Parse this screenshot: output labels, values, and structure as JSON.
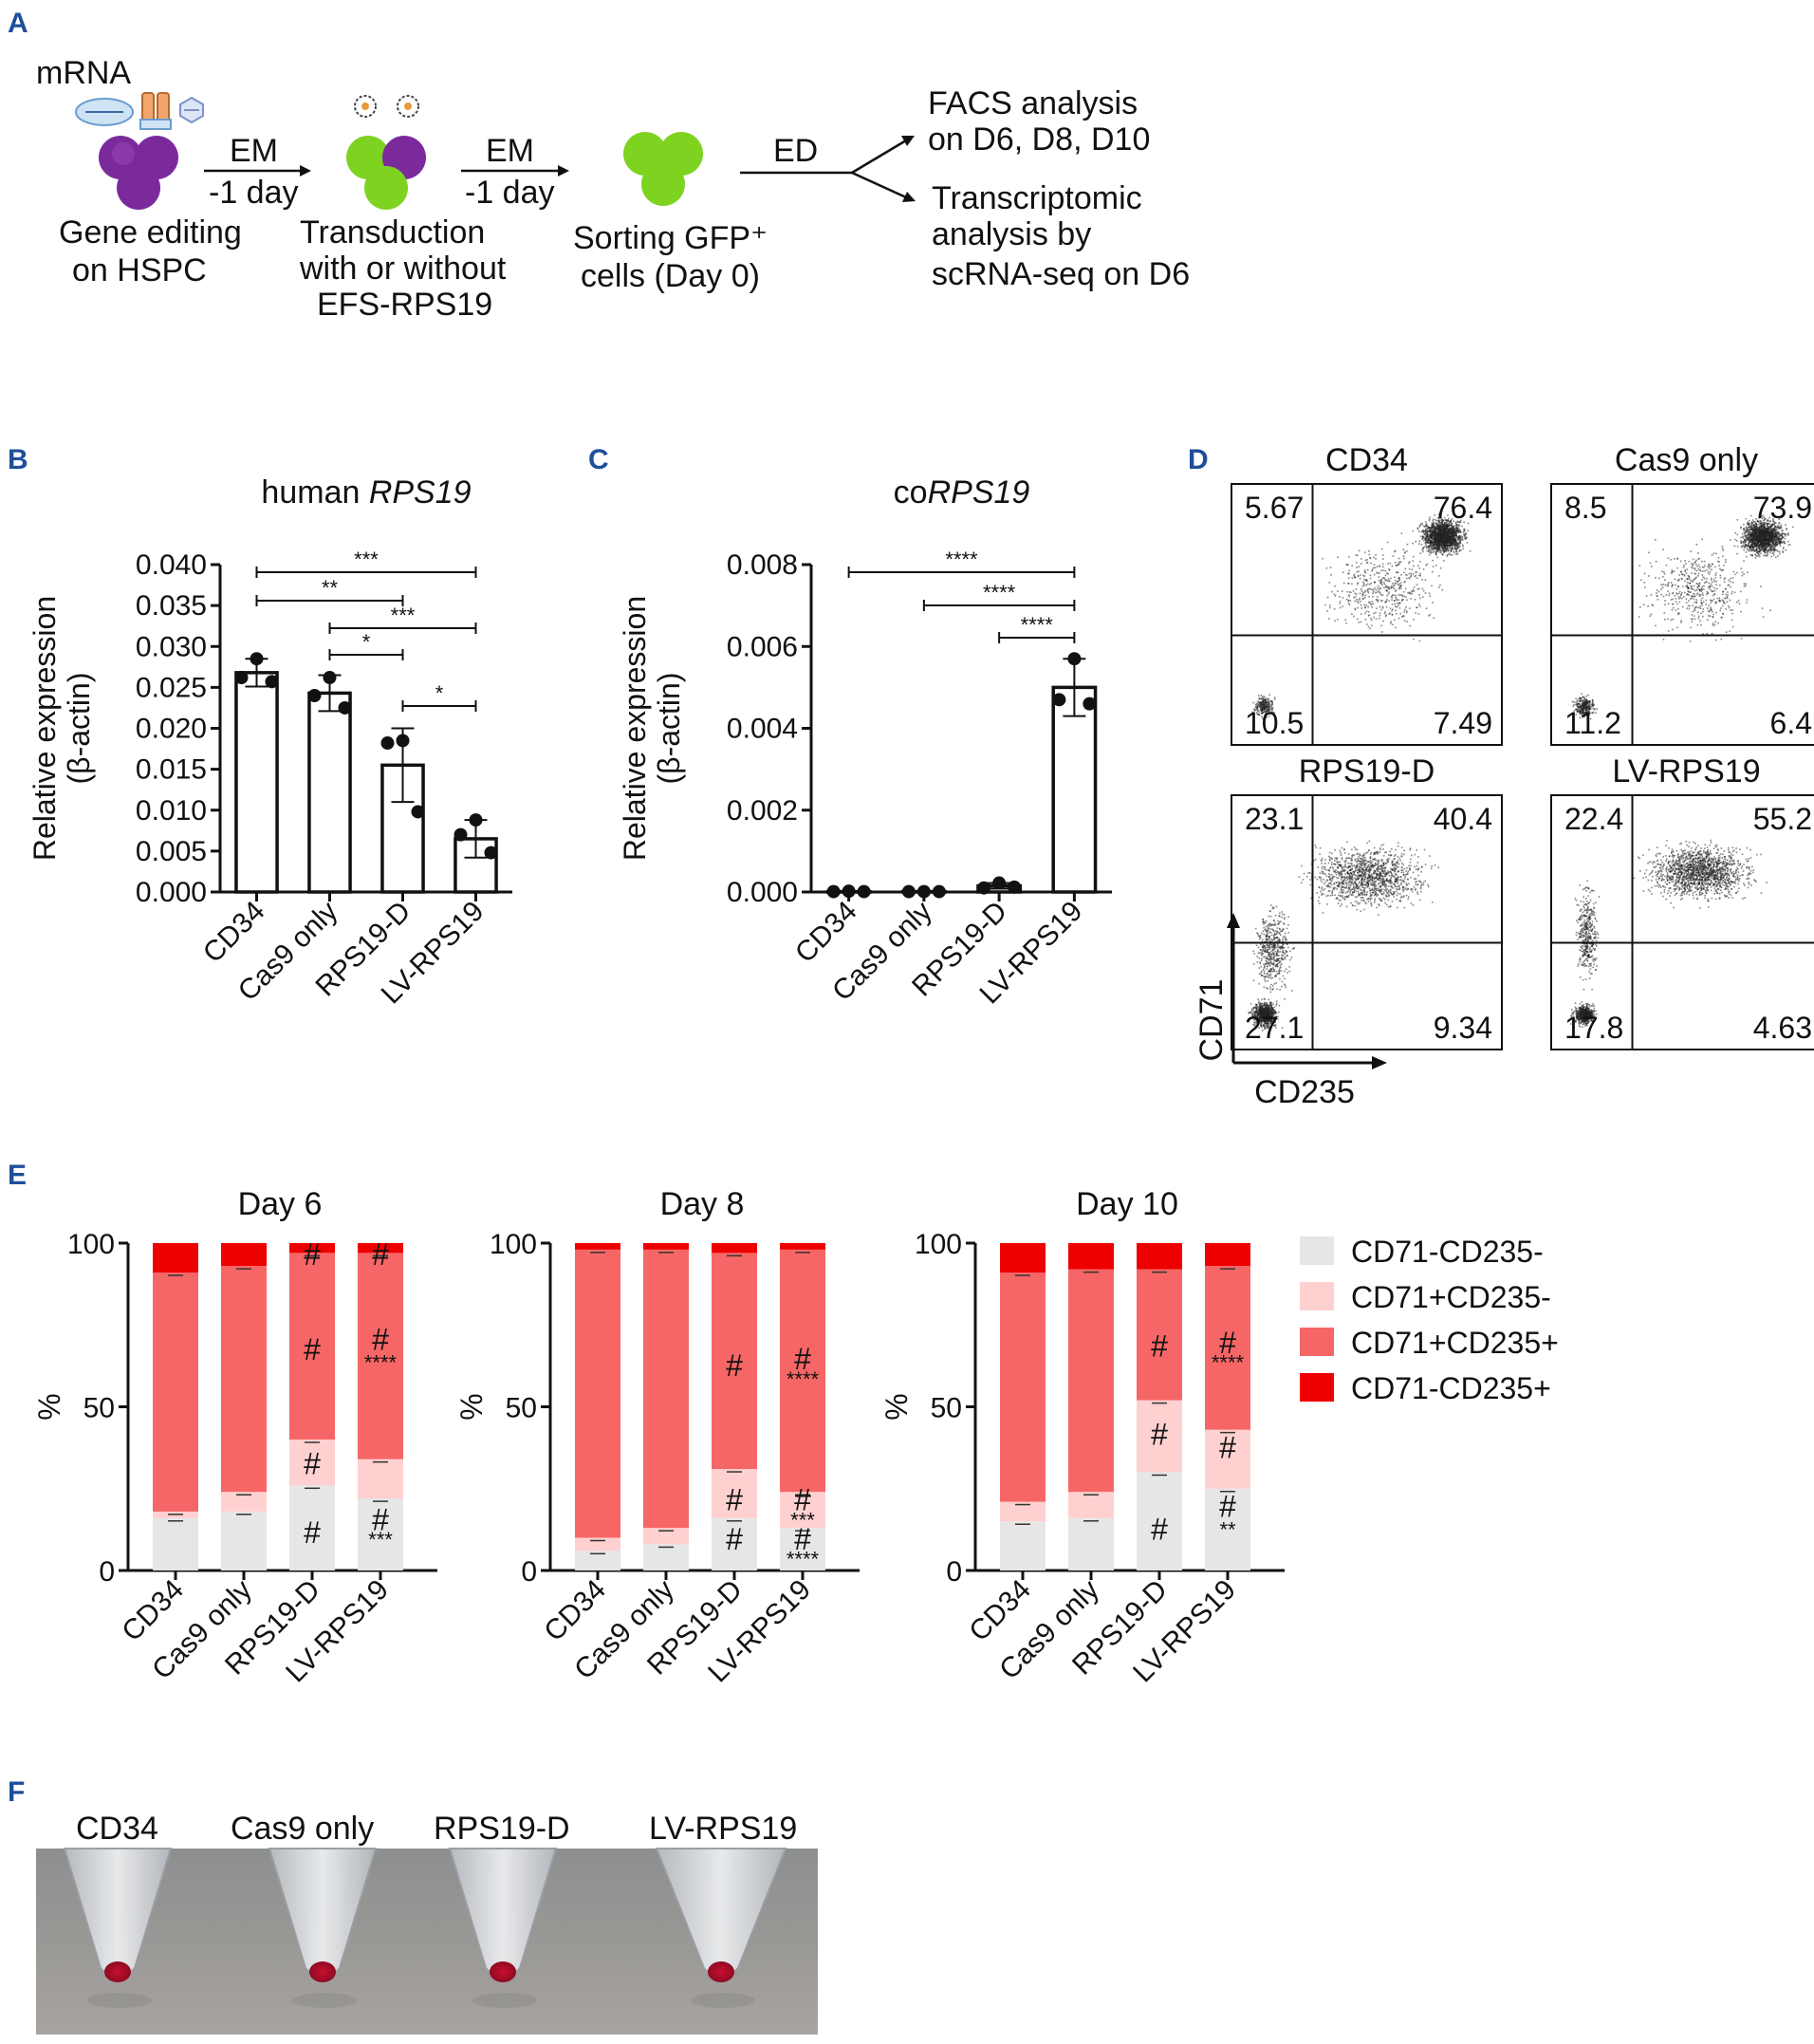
{
  "panels": {
    "A": "A",
    "B": "B",
    "C": "C",
    "D": "D",
    "E": "E",
    "F": "F"
  },
  "workflow": {
    "mrna": "mRNA",
    "em1": "EM",
    "day1": "-1 day",
    "em2": "EM",
    "day2": "-1 day",
    "ed": "ED",
    "step1": [
      "Gene editing",
      "on HSPC"
    ],
    "step2": [
      "Transduction",
      "with or without",
      "EFS-RPS19"
    ],
    "step3": [
      "Sorting GFP⁺",
      "cells (Day 0)"
    ],
    "out1": [
      "FACS analysis",
      "on D6, D8, D10"
    ],
    "out2": [
      "Transcriptomic",
      "analysis  by",
      "scRNA-seq on D6"
    ]
  },
  "colors": {
    "purple": "#7b2a9c",
    "green": "#7ed321",
    "cd71neg_cd235neg": "#e6e6e6",
    "cd71pos_cd235neg": "#ffd0d0",
    "cd71pos_cd235pos": "#f76666",
    "cd71neg_cd235pos": "#ee0000",
    "panel_letter": "#1f4e9a"
  },
  "chart_data": [
    {
      "id": "B",
      "type": "bar",
      "title_prefix": "human ",
      "title_italic": "RPS19",
      "ylabel_line1": "Relative expression",
      "ylabel_line2": "(β-actin)",
      "categories": [
        "CD34",
        "Cas9 only",
        "RPS19-D",
        "LV-RPS19"
      ],
      "values": [
        0.0268,
        0.0243,
        0.0155,
        0.0065
      ],
      "errors": [
        0.0017,
        0.0022,
        0.0045,
        0.0023
      ],
      "points": [
        [
          0.0285,
          0.0262,
          0.0257
        ],
        [
          0.0262,
          0.024,
          0.0225
        ],
        [
          0.0185,
          0.0182,
          0.0098
        ],
        [
          0.0088,
          0.007,
          0.0048
        ]
      ],
      "ylim": [
        0,
        0.04
      ],
      "yticks": [
        "0.000",
        "0.005",
        "0.010",
        "0.015",
        "0.020",
        "0.025",
        "0.030",
        "0.035",
        "0.040"
      ],
      "comparisons": [
        {
          "from": 0,
          "to": 3,
          "label": "***"
        },
        {
          "from": 0,
          "to": 2,
          "label": "**"
        },
        {
          "from": 1,
          "to": 3,
          "label": "***"
        },
        {
          "from": 1,
          "to": 2,
          "label": "*"
        },
        {
          "from": 2,
          "to": 3,
          "label": "*"
        }
      ]
    },
    {
      "id": "C",
      "type": "bar",
      "title_prefix": "co",
      "title_italic": "RPS19",
      "ylabel_line1": "Relative expression",
      "ylabel_line2": "(β-actin)",
      "categories": [
        "CD34",
        "Cas9 only",
        "RPS19-D",
        "LV-RPS19"
      ],
      "values": [
        1e-05,
        1e-05,
        0.00015,
        0.005
      ],
      "errors": [
        1e-05,
        1e-05,
        7e-05,
        0.0007
      ],
      "points": [
        [
          2e-05,
          1e-05,
          1e-05
        ],
        [
          1e-05,
          1e-05,
          1e-05
        ],
        [
          0.00022,
          0.0001,
          0.00012
        ],
        [
          0.0057,
          0.0047,
          0.0046
        ]
      ],
      "ylim": [
        0,
        0.008
      ],
      "yticks": [
        "0.000",
        "0.002",
        "0.004",
        "0.006",
        "0.008"
      ],
      "comparisons": [
        {
          "from": 0,
          "to": 3,
          "label": "****"
        },
        {
          "from": 1,
          "to": 3,
          "label": "****"
        },
        {
          "from": 2,
          "to": 3,
          "label": "****"
        }
      ]
    },
    {
      "id": "D",
      "type": "scatter",
      "xlabel": "CD235",
      "ylabel": "CD71",
      "plots": [
        {
          "title": "CD34",
          "quadrants": {
            "ul": "5.67",
            "ur": "76.4",
            "ll": "10.5",
            "lr": "7.49"
          }
        },
        {
          "title": "Cas9 only",
          "quadrants": {
            "ul": "8.5",
            "ur": "73.9",
            "ll": "11.2",
            "lr": "6.4"
          }
        },
        {
          "title": "RPS19-D",
          "quadrants": {
            "ul": "23.1",
            "ur": "40.4",
            "ll": "27.1",
            "lr": "9.34"
          }
        },
        {
          "title": "LV-RPS19",
          "quadrants": {
            "ul": "22.4",
            "ur": "55.2",
            "ll": "17.8",
            "lr": "4.63"
          }
        }
      ]
    },
    {
      "id": "E",
      "type": "bar",
      "stacked": true,
      "ylabel": "%",
      "yticks": [
        "0",
        "50",
        "100"
      ],
      "ylim": [
        0,
        100
      ],
      "categories": [
        "CD34",
        "Cas9 only",
        "RPS19-D",
        "LV-RPS19"
      ],
      "legend": [
        "CD71-CD235-",
        "CD71+CD235-",
        "CD71+CD235+",
        "CD71-CD235+"
      ],
      "charts": [
        {
          "title": "Day 6",
          "series": [
            {
              "name": "CD71-CD235-",
              "values": [
                16,
                18,
                26,
                22
              ]
            },
            {
              "name": "CD71+CD235-",
              "values": [
                2,
                6,
                14,
                12
              ]
            },
            {
              "name": "CD71+CD235+",
              "values": [
                73,
                69,
                57,
                63
              ]
            },
            {
              "name": "CD71-CD235+",
              "values": [
                9,
                7,
                3,
                3
              ]
            }
          ],
          "marks": [
            {
              "bar": 2,
              "y": 11,
              "text": "#"
            },
            {
              "bar": 2,
              "y": 32,
              "text": "#"
            },
            {
              "bar": 2,
              "y": 67,
              "text": "#"
            },
            {
              "bar": 2,
              "y": 96,
              "text": "#"
            },
            {
              "bar": 3,
              "y": 15,
              "text": "#"
            },
            {
              "bar": 3,
              "y": 9,
              "text": "***",
              "small": true
            },
            {
              "bar": 3,
              "y": 70,
              "text": "#"
            },
            {
              "bar": 3,
              "y": 63,
              "text": "****",
              "small": true
            },
            {
              "bar": 3,
              "y": 96,
              "text": "#"
            }
          ]
        },
        {
          "title": "Day 8",
          "series": [
            {
              "name": "CD71-CD235-",
              "values": [
                6,
                8,
                16,
                13
              ]
            },
            {
              "name": "CD71+CD235-",
              "values": [
                4,
                5,
                15,
                11
              ]
            },
            {
              "name": "CD71+CD235+",
              "values": [
                88,
                85,
                66,
                74
              ]
            },
            {
              "name": "CD71-CD235+",
              "values": [
                2,
                2,
                3,
                2
              ]
            }
          ],
          "marks": [
            {
              "bar": 2,
              "y": 9,
              "text": "#"
            },
            {
              "bar": 2,
              "y": 21,
              "text": "#"
            },
            {
              "bar": 2,
              "y": 62,
              "text": "#"
            },
            {
              "bar": 3,
              "y": 9,
              "text": "#"
            },
            {
              "bar": 3,
              "y": 3,
              "text": "****",
              "small": true
            },
            {
              "bar": 3,
              "y": 21,
              "text": "#"
            },
            {
              "bar": 3,
              "y": 15,
              "text": "***",
              "small": true
            },
            {
              "bar": 3,
              "y": 64,
              "text": "#"
            },
            {
              "bar": 3,
              "y": 58,
              "text": "****",
              "small": true
            }
          ]
        },
        {
          "title": "Day 10",
          "series": [
            {
              "name": "CD71-CD235-",
              "values": [
                15,
                16,
                30,
                25
              ]
            },
            {
              "name": "CD71+CD235-",
              "values": [
                6,
                8,
                22,
                18
              ]
            },
            {
              "name": "CD71+CD235+",
              "values": [
                70,
                68,
                40,
                50
              ]
            },
            {
              "name": "CD71-CD235+",
              "values": [
                9,
                8,
                8,
                7
              ]
            }
          ],
          "marks": [
            {
              "bar": 2,
              "y": 12,
              "text": "#"
            },
            {
              "bar": 2,
              "y": 41,
              "text": "#"
            },
            {
              "bar": 2,
              "y": 68,
              "text": "#"
            },
            {
              "bar": 3,
              "y": 19,
              "text": "#"
            },
            {
              "bar": 3,
              "y": 12,
              "text": "**",
              "small": true
            },
            {
              "bar": 3,
              "y": 37,
              "text": "#"
            },
            {
              "bar": 3,
              "y": 69,
              "text": "#"
            },
            {
              "bar": 3,
              "y": 63,
              "text": "****",
              "small": true
            }
          ]
        }
      ]
    }
  ],
  "photo": {
    "labels": [
      "CD34",
      "Cas9 only",
      "RPS19-D",
      "LV-RPS19"
    ]
  }
}
